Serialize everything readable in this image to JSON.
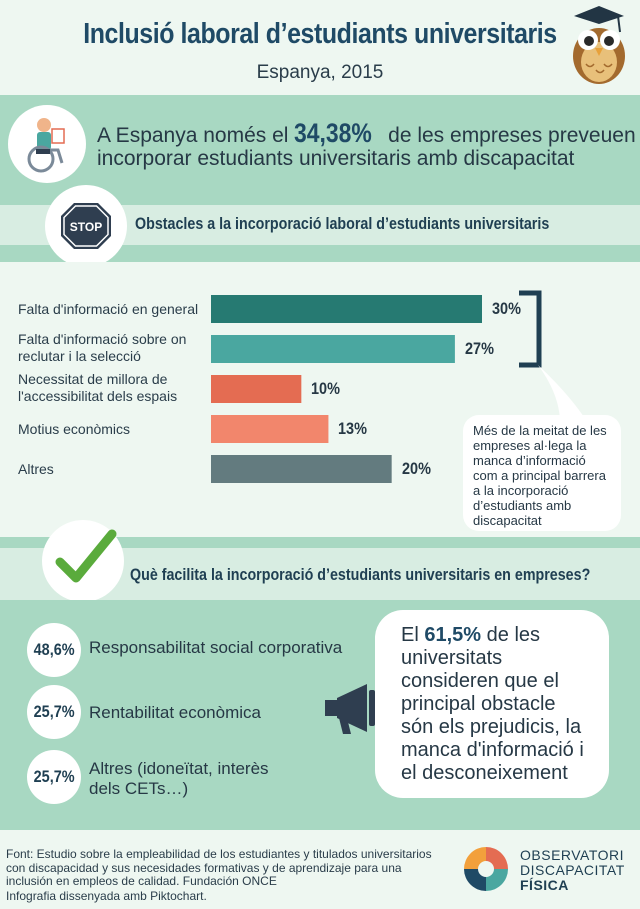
{
  "header": {
    "title": "Inclusió laboral d’estudiants universitaris",
    "subtitle": "Espanya, 2015"
  },
  "lead": {
    "pre": "A Espanya només el",
    "value": "34,38%",
    "post": "de les empreses preveuen",
    "line2": "incorporar estudiants universitaris amb discapacitat"
  },
  "obstacles": {
    "icon_text": "STOP",
    "title": "Obstacles a la incorporació laboral d’estudiants universitaris",
    "note": "Més de la meitat de les empreses al·lega la manca d’informació com a principal barrera a la incorporació d’estudiants amb discapacitat"
  },
  "chart_data": {
    "type": "bar",
    "orientation": "horizontal",
    "categories": [
      "Falta d'informació en general",
      "Falta d'informació sobre on reclutar i la selecció",
      "Necessitat de millora de l'accessibilitat dels espais",
      "Motius econòmics",
      "Altres"
    ],
    "values": [
      30,
      27,
      10,
      13,
      20
    ],
    "value_labels": [
      "30%",
      "27%",
      "10%",
      "13%",
      "20%"
    ],
    "colors": [
      "#267a72",
      "#4aa7a0",
      "#e46c52",
      "#f2866c",
      "#637b7f"
    ],
    "xlim": [
      0,
      30
    ]
  },
  "facilitators": {
    "title": "Què facilita la incorporació d’estudiants universitaris en empreses?",
    "items": [
      {
        "pct": "48,6%",
        "label": "Responsabilitat social corporativa"
      },
      {
        "pct": "25,7%",
        "label": "Rentabilitat econòmica"
      },
      {
        "pct": "25,7%",
        "label": "Altres (idoneïtat, interès dels CETs…)"
      }
    ]
  },
  "quote": {
    "pre": "El",
    "value": "61,5%",
    "post": "de les universitats consideren que el principal obstacle són els prejudicis, la manca d'informació i el desconeixement"
  },
  "footer": {
    "source": "Font: Estudio sobre la empleabilidad de los estudiantes y titulados universitarios con discapacidad y sus necesidades formativas y de aprendizaje para una inclusión en empleos de calidad. Fundación ONCE",
    "credit": "Infografia dissenyada amb Piktochart.",
    "logo_line1": "OBSERVATORI",
    "logo_line2": "DISCAPACITAT",
    "logo_line3": "FÍSICA"
  },
  "colors": {
    "mint": "#a8d8c2",
    "light": "#eef7f1",
    "navy": "#1f4a66"
  }
}
